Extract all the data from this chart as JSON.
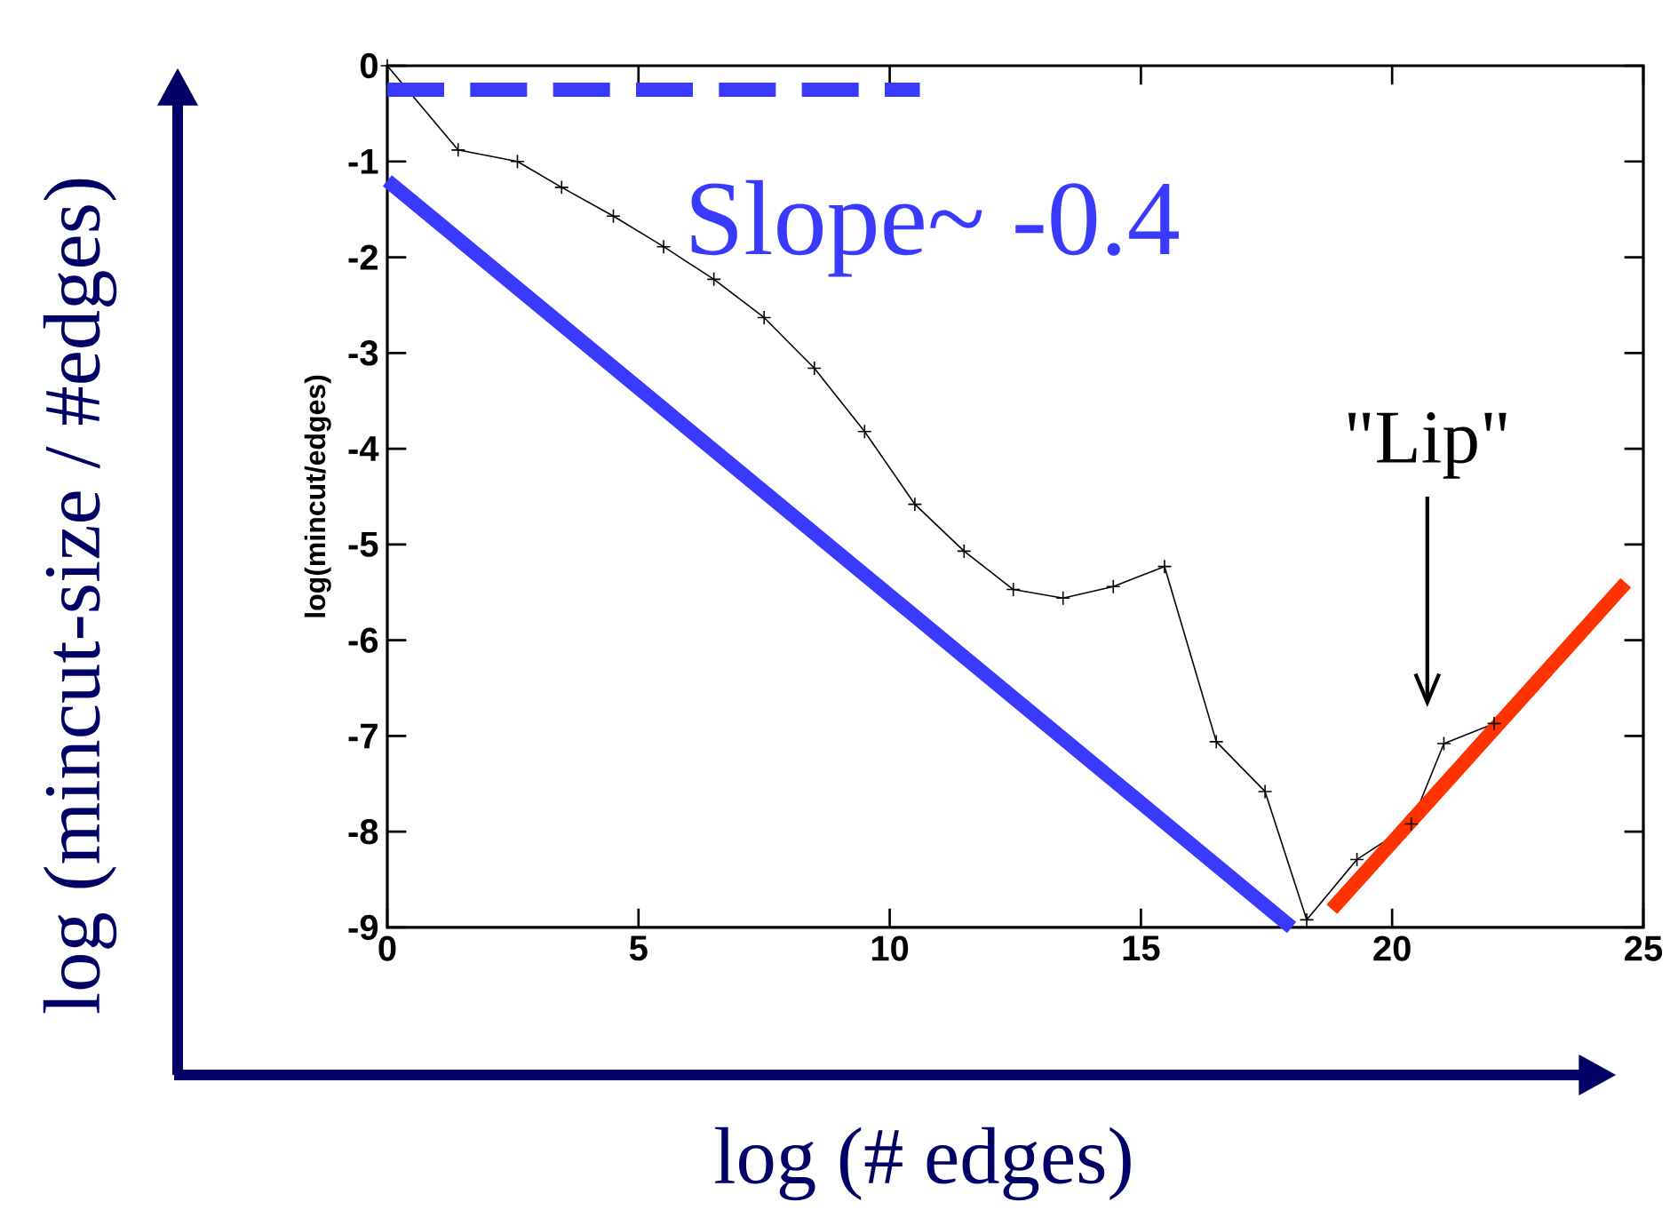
{
  "chart_data": {
    "type": "line",
    "xlabel": "log (# edges)",
    "ylabel": "log(mincut/edges)",
    "annotations": [
      "log (mincut-size / #edges)",
      "Slope~ -0.4",
      "\"Lip\""
    ],
    "xlim": [
      0,
      25
    ],
    "ylim": [
      -9,
      0
    ],
    "xticks": [
      0,
      5,
      10,
      15,
      20,
      25
    ],
    "yticks": [
      0,
      -1,
      -2,
      -3,
      -4,
      -5,
      -6,
      -7,
      -8,
      -9
    ],
    "series": [
      {
        "color": "#000000",
        "marker": "cross",
        "line_style": "solid",
        "x": [
          0,
          1.41,
          2.59,
          3.47,
          4.5,
          5.5,
          6.5,
          7.5,
          8.5,
          9.5,
          10.5,
          11.48,
          12.46,
          13.45,
          14.45,
          15.47,
          16.5,
          17.47,
          18.3,
          19.3,
          20.38,
          21.03,
          22.03
        ],
        "values": [
          0,
          -0.88,
          -1.0,
          -1.27,
          -1.57,
          -1.89,
          -2.23,
          -2.63,
          -3.16,
          -3.82,
          -4.58,
          -5.07,
          -5.47,
          -5.56,
          -5.44,
          -5.23,
          -7.06,
          -7.58,
          -8.92,
          -8.29,
          -7.92,
          -7.08,
          -6.87
        ]
      },
      {
        "color": "#3a3aff",
        "marker": "none",
        "line_style": "solid",
        "x": [
          0,
          18
        ],
        "values": [
          -1.2,
          -9
        ]
      },
      {
        "color": "#3a3aff",
        "marker": "none",
        "line_style": "dashed",
        "x": [
          0,
          10.6
        ],
        "values": [
          -0.25,
          -0.25
        ]
      },
      {
        "color": "#ff3300",
        "marker": "none",
        "line_style": "solid",
        "x": [
          18.8,
          24.65
        ],
        "values": [
          -8.81,
          -5.4
        ]
      }
    ]
  }
}
